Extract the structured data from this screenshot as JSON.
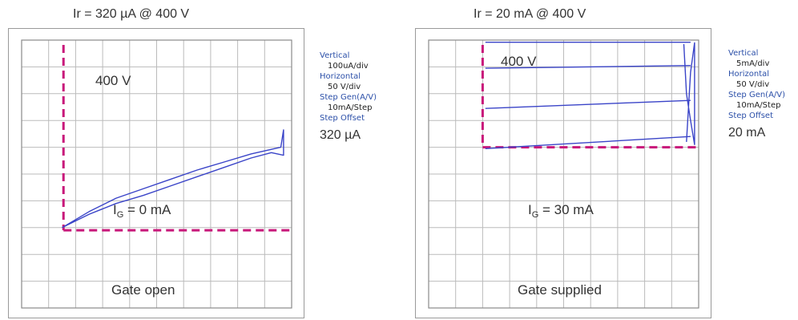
{
  "colors": {
    "trace": "#3a44c8",
    "marker": "#c8187a",
    "grid": "#bbbbbb",
    "label_key": "#2b4fa8"
  },
  "chart_data": [
    {
      "type": "line",
      "title": "Ir = 320 µA @ 400 V",
      "grid": true,
      "axis_divisions": {
        "x": 10,
        "y": 10
      },
      "xlim_div": [
        0,
        10
      ],
      "ylim_div": [
        0,
        10
      ],
      "settings": {
        "vertical_label": "Vertical",
        "vertical_value": "100uA/div",
        "horizontal_label": "Horizontal",
        "horizontal_value": "50 V/div",
        "stepgen_label": "Step Gen(A/V)",
        "stepgen_value": "10mA/Step",
        "offset_label": "Step Offset",
        "offset_value": "320 µA"
      },
      "annotations": {
        "voltage": "400 V",
        "gate_current_prefix": "I",
        "gate_current_sub": "G",
        "gate_current_suffix": " = 0 mA",
        "gate_state": "Gate open"
      },
      "marker": {
        "x_div": 1.55,
        "y_div": 7.1
      },
      "series": [
        {
          "x_div": [
            1.5,
            2.5,
            3.5,
            4.5,
            5.5,
            6.5,
            7.5,
            8.5,
            9.25,
            9.7,
            9.7,
            9.6,
            8.5,
            7.5,
            6.5,
            5.5,
            4.5,
            3.5,
            2.5,
            1.5
          ],
          "y_div": [
            7.0,
            6.5,
            6.1,
            5.8,
            5.45,
            5.1,
            4.75,
            4.4,
            4.2,
            4.3,
            3.35,
            4.0,
            4.25,
            4.55,
            4.85,
            5.2,
            5.55,
            5.9,
            6.4,
            7.0
          ]
        }
      ]
    },
    {
      "type": "line",
      "title": "Ir = 20 mA @ 400 V",
      "grid": true,
      "axis_divisions": {
        "x": 10,
        "y": 10
      },
      "xlim_div": [
        0,
        10
      ],
      "ylim_div": [
        0,
        10
      ],
      "settings": {
        "vertical_label": "Vertical",
        "vertical_value": "5mA/div",
        "horizontal_label": "Horizontal",
        "horizontal_value": "50 V/div",
        "stepgen_label": "Step Gen(A/V)",
        "stepgen_value": "10mA/Step",
        "offset_label": "Step Offset",
        "offset_value": "20 mA"
      },
      "annotations": {
        "voltage": "400 V",
        "gate_current_prefix": "I",
        "gate_current_sub": "G",
        "gate_current_suffix": " = 30 mA",
        "gate_state": "Gate supplied"
      },
      "marker": {
        "x_div": 2.0,
        "y_div": 4.0
      },
      "series": [
        {
          "x_div": [
            2.1,
            9.7
          ],
          "y_div": [
            4.05,
            3.6
          ]
        },
        {
          "x_div": [
            2.1,
            9.7
          ],
          "y_div": [
            2.55,
            2.25
          ]
        },
        {
          "x_div": [
            2.1,
            9.7
          ],
          "y_div": [
            1.05,
            0.95
          ]
        },
        {
          "x_div": [
            2.1,
            9.7
          ],
          "y_div": [
            0.08,
            0.08
          ]
        },
        {
          "x_div": [
            9.45,
            9.55,
            9.7,
            9.85,
            9.85,
            9.7,
            9.55
          ],
          "y_div": [
            0.15,
            2.0,
            3.0,
            3.9,
            0.1,
            1.2,
            3.8
          ]
        }
      ]
    }
  ]
}
